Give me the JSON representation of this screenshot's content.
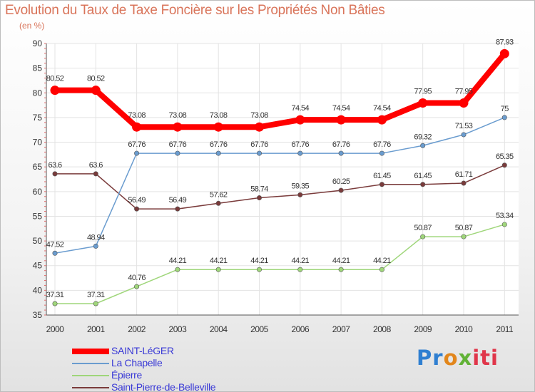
{
  "chart_data": {
    "type": "line",
    "title": "Evolution du Taux de Taxe Foncière sur les Propriétés Non Bâties",
    "ylabel": "(en %)",
    "xlabel": "",
    "ylim": [
      35,
      90
    ],
    "yticks": [
      35,
      40,
      45,
      50,
      55,
      60,
      65,
      70,
      75,
      80,
      85,
      90
    ],
    "grid": true,
    "legend_position": "bottom-left",
    "categories": [
      "2000",
      "2001",
      "2002",
      "2003",
      "2004",
      "2005",
      "2006",
      "2007",
      "2008",
      "2009",
      "2010",
      "2011"
    ],
    "series": [
      {
        "name": "SAINT-LéGER",
        "color": "#ff0000",
        "values": [
          80.52,
          80.52,
          73.08,
          73.08,
          73.08,
          73.08,
          74.54,
          74.54,
          74.54,
          77.95,
          77.95,
          87.93
        ],
        "labels": [
          "80.52",
          "80.52",
          "73.08",
          "73.08",
          "73.08",
          "73.08",
          "74.54",
          "74.54",
          "74.54",
          "77.95",
          "77.95",
          "87.93"
        ]
      },
      {
        "name": "La Chapelle",
        "color": "#6a9ccf",
        "values": [
          47.52,
          48.94,
          67.76,
          67.76,
          67.76,
          67.76,
          67.76,
          67.76,
          67.76,
          69.32,
          71.53,
          75
        ],
        "labels": [
          "47.52",
          "48.94",
          "67.76",
          "67.76",
          "67.76",
          "67.76",
          "67.76",
          "67.76",
          "67.76",
          "69.32",
          "71.53",
          "75"
        ]
      },
      {
        "name": "Épierre",
        "color": "#9fd67a",
        "values": [
          37.31,
          37.31,
          40.76,
          44.21,
          44.21,
          44.21,
          44.21,
          44.21,
          44.21,
          50.87,
          50.87,
          53.34
        ],
        "labels": [
          "37.31",
          "37.31",
          "40.76",
          "44.21",
          "44.21",
          "44.21",
          "44.21",
          "44.21",
          "44.21",
          "50.87",
          "50.87",
          "53.34"
        ]
      },
      {
        "name": "Saint-Pierre-de-Belleville",
        "color": "#7a3b3b",
        "values": [
          63.6,
          63.6,
          56.49,
          56.49,
          57.62,
          58.74,
          59.35,
          60.25,
          61.45,
          61.45,
          61.71,
          65.35
        ],
        "labels": [
          "63.6",
          "63.6",
          "56.49",
          "56.49",
          "57.62",
          "58.74",
          "59.35",
          "60.25",
          "61.45",
          "61.45",
          "61.71",
          "65.35"
        ]
      }
    ]
  },
  "legend": {
    "items": [
      {
        "label": "SAINT-LéGER",
        "color": "#ff0000"
      },
      {
        "label": "La Chapelle",
        "color": "#6a9ccf"
      },
      {
        "label": "Épierre",
        "color": "#9fd67a"
      },
      {
        "label": "Saint-Pierre-de-Belleville",
        "color": "#7a3b3b"
      }
    ]
  },
  "brand": {
    "p1": "Pr",
    "p2": "o",
    "p3": "x",
    "p4": "iti"
  }
}
